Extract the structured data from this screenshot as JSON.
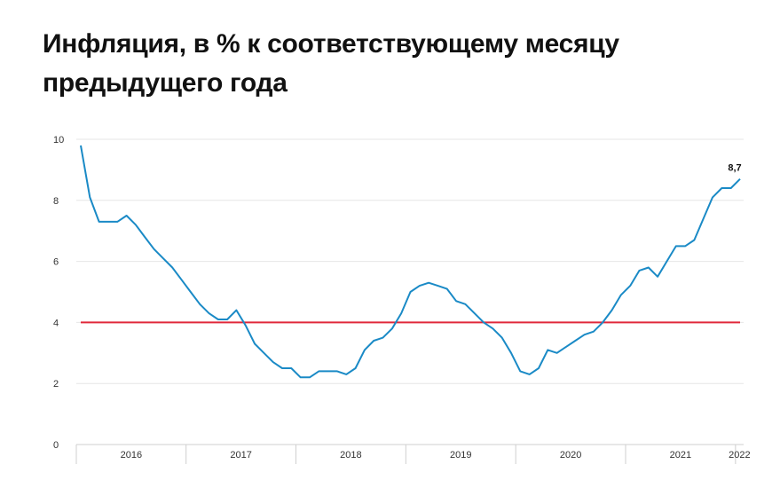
{
  "title": "Инфляция, в % к соответствующему месяцу предыдущего года",
  "colors": {
    "line": "#1a8ac6",
    "target": "#e0283a",
    "grid": "#e6e6e6"
  },
  "chart_data": {
    "type": "line",
    "title": "Инфляция, в % к соответствующему месяцу предыдущего года",
    "xlabel": "",
    "ylabel": "",
    "ylim": [
      0,
      10
    ],
    "yticks": [
      "0",
      "2",
      "4",
      "6",
      "8",
      "10"
    ],
    "year_labels": [
      "2016",
      "2017",
      "2018",
      "2019",
      "2020",
      "2021",
      "2022"
    ],
    "x_start": "2016-01",
    "series": [
      {
        "values": [
          9.8,
          8.1,
          7.3,
          7.3,
          7.3,
          7.5,
          7.2,
          6.8,
          6.4,
          6.1,
          5.8,
          5.4,
          5.0,
          4.6,
          4.3,
          4.1,
          4.1,
          4.4,
          3.9,
          3.3,
          3.0,
          2.7,
          2.5,
          2.5,
          2.2,
          2.2,
          2.4,
          2.4,
          2.4,
          2.3,
          2.5,
          3.1,
          3.4,
          3.5,
          3.8,
          4.3,
          5.0,
          5.2,
          5.3,
          5.2,
          5.1,
          4.7,
          4.6,
          4.3,
          4.0,
          3.8,
          3.5,
          3.0,
          2.4,
          2.3,
          2.5,
          3.1,
          3.0,
          3.2,
          3.4,
          3.6,
          3.7,
          4.0,
          4.4,
          4.9,
          5.2,
          5.7,
          5.8,
          5.5,
          6.0,
          6.5,
          6.5,
          6.7,
          7.4,
          8.1,
          8.4,
          8.4,
          8.7
        ]
      },
      {
        "values": [
          4,
          4
        ]
      }
    ],
    "annotations": [
      {
        "text": "8,7"
      }
    ],
    "grid": true
  }
}
